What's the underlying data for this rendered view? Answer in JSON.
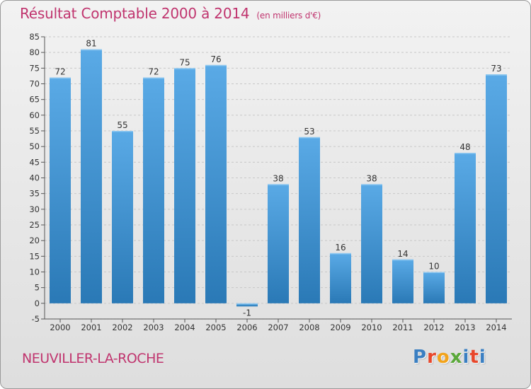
{
  "title": "Résultat Comptable 2000 à 2014",
  "subtitle": "(en milliers d'€)",
  "commune": "NEUVILLER-LA-ROCHE",
  "logo": "Proxiti",
  "colors": {
    "bar_light": "#5aaae6",
    "bar_dark": "#2a79b6",
    "title": "#c0346e"
  },
  "chart_data": {
    "type": "bar",
    "title": "Résultat Comptable 2000 à 2014",
    "xlabel": "",
    "ylabel": "",
    "categories": [
      "2000",
      "2001",
      "2002",
      "2003",
      "2004",
      "2005",
      "2006",
      "2007",
      "2008",
      "2009",
      "2010",
      "2011",
      "2012",
      "2013",
      "2014"
    ],
    "values": [
      72,
      81,
      55,
      72,
      75,
      76,
      -1,
      38,
      53,
      16,
      38,
      14,
      10,
      48,
      73
    ],
    "ylim": [
      -5,
      85
    ],
    "yticks": [
      -5,
      0,
      5,
      10,
      15,
      20,
      25,
      30,
      35,
      40,
      45,
      50,
      55,
      60,
      65,
      70,
      75,
      80,
      85
    ],
    "grid": "horizontal dashed"
  }
}
